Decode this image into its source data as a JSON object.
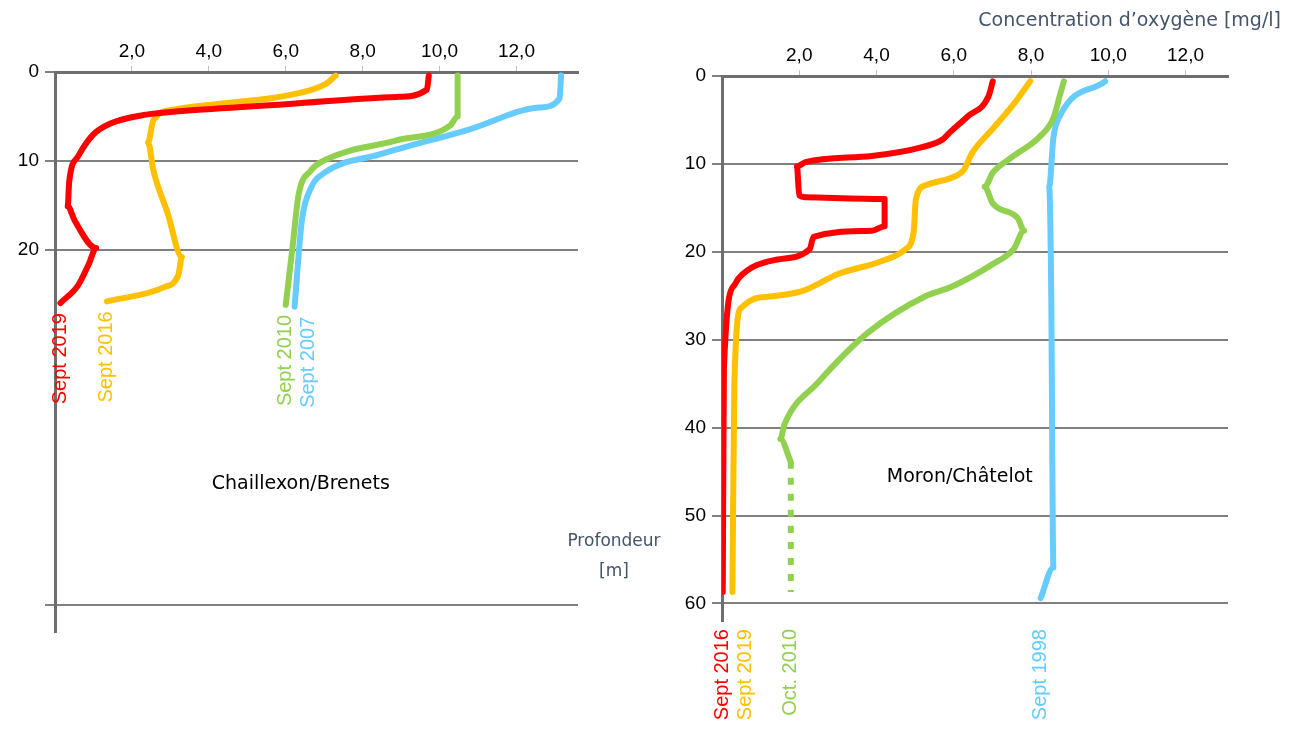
{
  "chart_data": [
    {
      "type": "line",
      "marker": "none",
      "grid": "y",
      "xlim": [
        0,
        13.6
      ],
      "ylim": [
        63,
        0
      ],
      "xticks": [
        {
          "value": 2,
          "label": "2,0"
        },
        {
          "value": 4,
          "label": "4,0"
        },
        {
          "value": 6,
          "label": "6,0"
        },
        {
          "value": 8,
          "label": "8,0"
        },
        {
          "value": 10,
          "label": "10,0"
        },
        {
          "value": 12,
          "label": "12,0"
        }
      ],
      "yticks": [
        0,
        10,
        20,
        {
          "value": 60,
          "label": null
        }
      ],
      "annotations": [
        "Chaillexon/Brenets"
      ],
      "series": [
        {
          "name": "Sept 2019",
          "color": "#ff0000",
          "x": [
            9.72,
            9.67,
            8.88,
            6.09,
            3.3,
            2.37,
            1.44,
            0.98,
            0.6,
            0.37,
            0.33,
            0.51,
            1.07,
            0.88,
            0.6,
            0.14
          ],
          "values": [
            0.4,
            2,
            2.8,
            3.6,
            4.4,
            4.8,
            5.8,
            7.1,
            9.5,
            12.3,
            15.1,
            16.7,
            19.8,
            21.6,
            24,
            26
          ]
        },
        {
          "name": "Sept 2016",
          "color": "#ffc000",
          "x": [
            7.3,
            7.02,
            6.09,
            4.23,
            3.12,
            2.56,
            2.42,
            2.56,
            2.93,
            3.3,
            3.21,
            2.84,
            1.35
          ],
          "values": [
            0.4,
            1.4,
            2.6,
            3.6,
            4.2,
            5.4,
            7.9,
            11.1,
            15.9,
            20.8,
            22.8,
            24.2,
            25.8
          ]
        },
        {
          "name": "Sept 2010",
          "color": "#92d050",
          "x": [
            10.47,
            10.47,
            10.28,
            8.88,
            7.02,
            6.65,
            6.33,
            6.19,
            6.0
          ],
          "values": [
            0.4,
            5,
            6,
            7.7,
            9.9,
            11.1,
            13.9,
            19.2,
            26.2
          ]
        },
        {
          "name": "Sept 2007",
          "color": "#66ccff",
          "x": [
            13.16,
            13.12,
            12.6,
            10.74,
            8.42,
            7.02,
            6.65,
            6.42,
            6.23
          ],
          "values": [
            0.4,
            3,
            4,
            6.5,
            9.3,
            11.3,
            13.1,
            16.7,
            26.4
          ]
        }
      ]
    },
    {
      "type": "line",
      "marker": "none",
      "grid": "y",
      "xlim": [
        0,
        13.1
      ],
      "ylim": [
        62,
        0
      ],
      "xlabel": "Concentration d’oxygène [mg/l]",
      "ylabel": "Profondeur [m]",
      "xticks": [
        {
          "value": 2,
          "label": "2,0"
        },
        {
          "value": 4,
          "label": "4,0"
        },
        {
          "value": 6,
          "label": "6,0"
        },
        {
          "value": 8,
          "label": "8,0"
        },
        {
          "value": 10,
          "label": "10,0"
        },
        {
          "value": 12,
          "label": "12,0"
        }
      ],
      "yticks": [
        0,
        10,
        20,
        30,
        40,
        50,
        60
      ],
      "annotations": [
        "Moron/Châtelot"
      ],
      "series": [
        {
          "name": "Sept 2016",
          "color": "#ff0000",
          "x": [
            7.01,
            6.9,
            6.36,
            5.88,
            5.72,
            5.18,
            3.88,
            2.16,
            1.94,
            2.0,
            2.16,
            4.21,
            4.21,
            3.88,
            2.37,
            2.27,
            1.4,
            0.43,
            0.32,
            0.05,
            0.02
          ],
          "values": [
            0.6,
            2.3,
            4.6,
            6.5,
            7.2,
            8.1,
            9.1,
            9.8,
            10.3,
            13.6,
            13.8,
            14.0,
            17.1,
            17.6,
            18.3,
            19.7,
            20.9,
            23,
            23.8,
            33.2,
            58.7
          ]
        },
        {
          "name": "Sept 2019",
          "color": "#ffc000",
          "x": [
            7.98,
            7.55,
            7.01,
            6.47,
            6.26,
            6.04,
            5.29,
            5.02,
            4.96,
            4.75,
            4.1,
            3.02,
            2.05,
            0.97,
            0.49,
            0.32,
            0.27
          ],
          "values": [
            0.6,
            3.2,
            6,
            8.8,
            10.7,
            11.4,
            12.4,
            14,
            17.8,
            19.7,
            21.1,
            22.5,
            24.5,
            25.2,
            26.4,
            34.9,
            58.7
          ]
        },
        {
          "name": "Oct. 2010",
          "color": "#92d050",
          "x": [
            8.85,
            8.74,
            8.58,
            8.2,
            7.55,
            7.01,
            6.8,
            7.01,
            7.66,
            7.82,
            7.55,
            7.01,
            5.93,
            5.29,
            3.78,
            2.48,
            1.62,
            1.51,
            1.78
          ],
          "values": [
            0.6,
            2.3,
            4.8,
            7,
            9.1,
            11,
            12.6,
            14.5,
            16.2,
            17.6,
            19.7,
            21.4,
            24,
            25,
            29.2,
            34.9,
            39.6,
            41.3,
            43.9
          ]
        },
        {
          "color": "#92d050",
          "line_style": "dotted",
          "x": [
            1.78,
            1.78
          ],
          "values": [
            43.9,
            58.7
          ]
        },
        {
          "name": "Sept 1998",
          "color": "#66ccff",
          "x": [
            9.92,
            8.74,
            8.58,
            8.47,
            8.52,
            8.58,
            8.25
          ],
          "values": [
            0.6,
            4.6,
            7,
            12.6,
            23.1,
            55.9,
            59.4
          ]
        }
      ]
    }
  ]
}
